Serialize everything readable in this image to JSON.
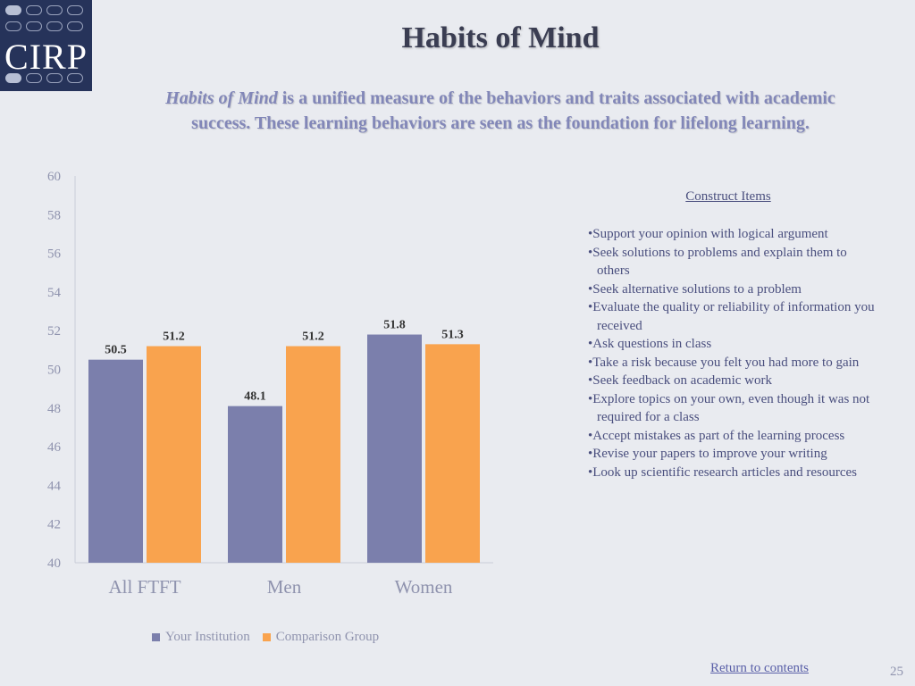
{
  "logo": {
    "text": "CIRP"
  },
  "title": "Habits of Mind",
  "subtitle": {
    "lead": "Habits of Mind",
    "line1": " is a unified measure of the behaviors and traits associated with academic",
    "line2": "success. These learning behaviors are seen as the foundation for lifelong learning."
  },
  "colors": {
    "institution": "#7b7fac",
    "comparison": "#f9a34e",
    "background": "#e9ebf0",
    "logo_bg": "#26335a"
  },
  "chart_data": {
    "type": "bar",
    "categories": [
      "All FTFT",
      "Men",
      "Women"
    ],
    "series": [
      {
        "name": "Your Institution",
        "values": [
          50.5,
          48.1,
          51.8
        ],
        "color": "#7b7fac"
      },
      {
        "name": "Comparison Group",
        "values": [
          51.2,
          51.2,
          51.3
        ],
        "color": "#f9a34e"
      }
    ],
    "ylim": [
      40,
      60
    ],
    "yticks": [
      40,
      42,
      44,
      46,
      48,
      50,
      52,
      54,
      56,
      58,
      60
    ],
    "grid": false,
    "legend": "bottom"
  },
  "construct": {
    "heading": "Construct Items",
    "items": [
      "Support your opinion with logical argument",
      "Seek solutions to problems and explain them to others",
      "Seek alternative solutions to a problem",
      "Evaluate the quality or reliability of information you received",
      "Ask questions in class",
      "Take a risk because you felt you had more to gain",
      "Seek feedback on academic work",
      "Explore topics on your own, even though it was not required for a class",
      "Accept mistakes as part of the learning process",
      "Revise your papers to improve your writing",
      "Look up scientific research articles and resources"
    ]
  },
  "footer": {
    "return_link": "Return to contents",
    "page_number": "25"
  }
}
